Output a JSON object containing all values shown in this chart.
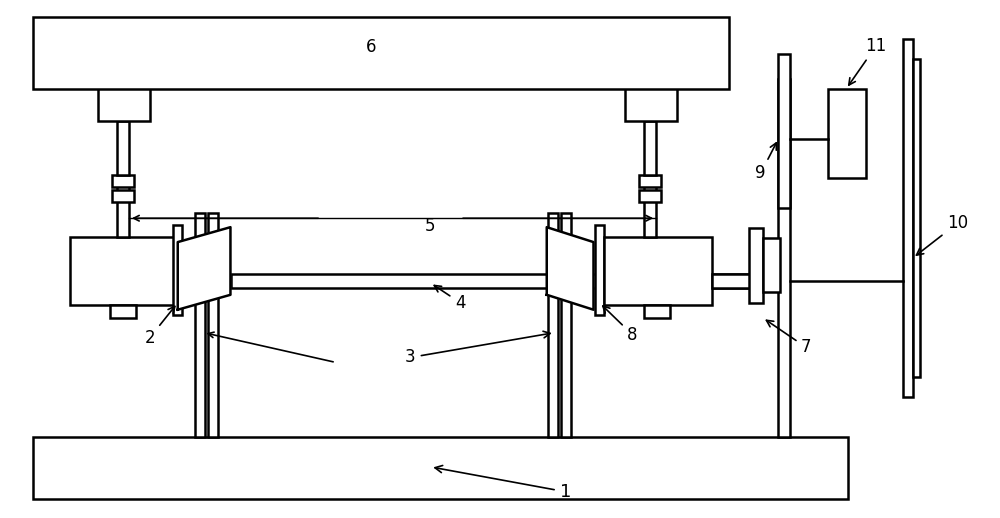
{
  "bg_color": "#ffffff",
  "line_color": "#000000",
  "lw": 1.8,
  "fig_width": 10.0,
  "fig_height": 5.18,
  "label_fs": 12
}
